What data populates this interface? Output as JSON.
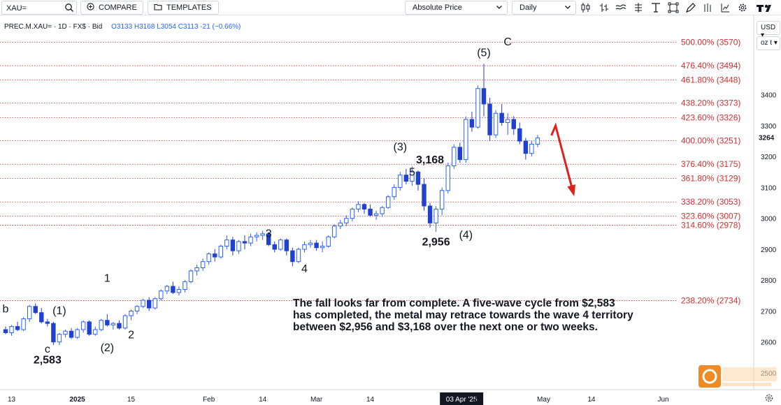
{
  "toolbar": {
    "symbol_value": "XAU=",
    "compare_label": "COMPARE",
    "templates_label": "TEMPLATES",
    "price_type": "Absolute Price",
    "interval": "Daily",
    "icons": [
      "search-icon",
      "compare-plus-icon",
      "folder-icon",
      "candles-icon",
      "bars-icon",
      "lines-icon",
      "crosshair-icon",
      "text-icon",
      "fullscreen-icon",
      "drawing-icon",
      "layers-icon",
      "settings-icon"
    ]
  },
  "legend": {
    "name": "PREC.M.XAU=",
    "interval": "1D",
    "source": "FX$",
    "side": "Bid",
    "open": "O3133",
    "high": "H3168",
    "low": "L3054",
    "close": "C3113",
    "change": "-21 (−0.66%)"
  },
  "y_axis": {
    "currency": "USD",
    "unit": "oz t"
  },
  "annotation_text": "The fall looks far from complete.  A five-wave cycle from $2,583 has completed, the metal may retrace towards the wave 4 territory between $2,956 and $3,168 over the next one or two weeks.",
  "colors": {
    "up": "#2962ff",
    "down": "#2040d0",
    "fib": "#d32f2f",
    "arrow": "#e0201b"
  },
  "chart_data": {
    "type": "candlestick",
    "ylim": [
      2500,
      3650
    ],
    "y_ticks": [
      2500,
      2600,
      2700,
      2800,
      2900,
      3000,
      3100,
      3200,
      3300,
      3400
    ],
    "y_tick_labels": [
      "2500",
      "2600",
      "2700",
      "2800",
      "2900",
      "3000",
      "3100",
      "3200",
      "3300",
      "3400"
    ],
    "last_price_label": "3264",
    "x_tick_labels": [
      {
        "label": "13",
        "i": 1
      },
      {
        "label": "2025",
        "i": 12
      },
      {
        "label": "15",
        "i": 21
      },
      {
        "label": "Feb",
        "i": 34
      },
      {
        "label": "14",
        "i": 43
      },
      {
        "label": "Mar",
        "i": 52
      },
      {
        "label": "14",
        "i": 61
      },
      {
        "label": "03 Apr '25",
        "i": 73
      },
      {
        "label": "14",
        "i": 79
      },
      {
        "label": "May",
        "i": 90
      },
      {
        "label": "14",
        "i": 98
      },
      {
        "label": "Jun",
        "i": 110
      }
    ],
    "fib_levels": [
      {
        "label": "500.00% (3570)",
        "value": 3570
      },
      {
        "label": "476.40% (3494)",
        "value": 3494
      },
      {
        "label": "461.80% (3448)",
        "value": 3448
      },
      {
        "label": "438.20% (3373)",
        "value": 3373
      },
      {
        "label": "423.60% (3326)",
        "value": 3326
      },
      {
        "label": "400.00% (3251)",
        "value": 3251
      },
      {
        "label": "376.40% (3175)",
        "value": 3175
      },
      {
        "label": "361.80% (3129)",
        "value": 3129
      },
      {
        "label": "338.20% (3053)",
        "value": 3053
      },
      {
        "label": "323.60% (3007)",
        "value": 3007
      },
      {
        "label": "314.60% (2978)",
        "value": 2978
      },
      {
        "label": "238.20% (2734)",
        "value": 2734
      }
    ],
    "wave_labels": [
      {
        "text": "b",
        "i": 0,
        "price": 2695
      },
      {
        "text": "(1)",
        "i": 9,
        "price": 2690
      },
      {
        "text": "c",
        "i": 7,
        "price": 2565
      },
      {
        "text": "2,583",
        "i": 7,
        "price": 2530
      },
      {
        "text": "1",
        "i": 17,
        "price": 2795
      },
      {
        "text": "(2)",
        "i": 17,
        "price": 2570
      },
      {
        "text": "2",
        "i": 21,
        "price": 2612
      },
      {
        "text": "3",
        "i": 44,
        "price": 2940
      },
      {
        "text": "4",
        "i": 50,
        "price": 2825
      },
      {
        "text": "(3)",
        "i": 66,
        "price": 3220
      },
      {
        "text": "5",
        "i": 68,
        "price": 3138
      },
      {
        "text": "3,168",
        "i": 71,
        "price": 3178
      },
      {
        "text": "(4)",
        "i": 77,
        "price": 2935
      },
      {
        "text": "2,956",
        "i": 72,
        "price": 2912
      },
      {
        "text": "(5)",
        "i": 80,
        "price": 3525
      },
      {
        "text": "C",
        "i": 84,
        "price": 3560
      }
    ],
    "candles": [
      [
        2640,
        2650,
        2625,
        2630
      ],
      [
        2630,
        2655,
        2620,
        2650
      ],
      [
        2650,
        2665,
        2635,
        2640
      ],
      [
        2640,
        2680,
        2635,
        2675
      ],
      [
        2675,
        2720,
        2665,
        2715
      ],
      [
        2715,
        2725,
        2690,
        2695
      ],
      [
        2695,
        2710,
        2660,
        2665
      ],
      [
        2665,
        2675,
        2650,
        2660
      ],
      [
        2660,
        2665,
        2590,
        2600
      ],
      [
        2600,
        2630,
        2590,
        2625
      ],
      [
        2625,
        2640,
        2615,
        2635
      ],
      [
        2635,
        2645,
        2610,
        2615
      ],
      [
        2615,
        2645,
        2610,
        2640
      ],
      [
        2640,
        2670,
        2630,
        2665
      ],
      [
        2665,
        2670,
        2620,
        2625
      ],
      [
        2625,
        2650,
        2620,
        2640
      ],
      [
        2640,
        2675,
        2635,
        2670
      ],
      [
        2670,
        2690,
        2650,
        2655
      ],
      [
        2655,
        2665,
        2640,
        2660
      ],
      [
        2660,
        2670,
        2640,
        2645
      ],
      [
        2645,
        2690,
        2640,
        2685
      ],
      [
        2685,
        2705,
        2670,
        2700
      ],
      [
        2700,
        2720,
        2690,
        2715
      ],
      [
        2715,
        2740,
        2710,
        2735
      ],
      [
        2735,
        2745,
        2700,
        2710
      ],
      [
        2710,
        2745,
        2705,
        2740
      ],
      [
        2740,
        2770,
        2735,
        2765
      ],
      [
        2765,
        2785,
        2755,
        2780
      ],
      [
        2780,
        2795,
        2755,
        2760
      ],
      [
        2760,
        2780,
        2750,
        2770
      ],
      [
        2770,
        2800,
        2760,
        2795
      ],
      [
        2795,
        2835,
        2790,
        2830
      ],
      [
        2830,
        2850,
        2815,
        2840
      ],
      [
        2840,
        2870,
        2830,
        2860
      ],
      [
        2860,
        2890,
        2850,
        2885
      ],
      [
        2885,
        2900,
        2860,
        2875
      ],
      [
        2875,
        2915,
        2870,
        2910
      ],
      [
        2910,
        2945,
        2900,
        2930
      ],
      [
        2930,
        2940,
        2880,
        2895
      ],
      [
        2895,
        2930,
        2885,
        2925
      ],
      [
        2925,
        2945,
        2900,
        2920
      ],
      [
        2920,
        2950,
        2910,
        2940
      ],
      [
        2940,
        2955,
        2925,
        2945
      ],
      [
        2945,
        2960,
        2930,
        2950
      ],
      [
        2950,
        2955,
        2910,
        2915
      ],
      [
        2915,
        2925,
        2890,
        2900
      ],
      [
        2900,
        2935,
        2895,
        2930
      ],
      [
        2930,
        2935,
        2880,
        2895
      ],
      [
        2895,
        2905,
        2845,
        2860
      ],
      [
        2860,
        2905,
        2855,
        2900
      ],
      [
        2900,
        2925,
        2890,
        2915
      ],
      [
        2915,
        2930,
        2905,
        2920
      ],
      [
        2920,
        2930,
        2895,
        2905
      ],
      [
        2905,
        2925,
        2890,
        2910
      ],
      [
        2910,
        2945,
        2905,
        2940
      ],
      [
        2940,
        2980,
        2935,
        2975
      ],
      [
        2975,
        2995,
        2965,
        2985
      ],
      [
        2985,
        3010,
        2975,
        3000
      ],
      [
        3000,
        3035,
        2990,
        3030
      ],
      [
        3030,
        3055,
        3020,
        3045
      ],
      [
        3045,
        3050,
        3015,
        3030
      ],
      [
        3030,
        3045,
        3005,
        3010
      ],
      [
        3010,
        3025,
        2995,
        3015
      ],
      [
        3015,
        3040,
        3005,
        3035
      ],
      [
        3035,
        3075,
        3030,
        3070
      ],
      [
        3070,
        3110,
        3060,
        3100
      ],
      [
        3100,
        3150,
        3090,
        3140
      ],
      [
        3140,
        3160,
        3110,
        3120
      ],
      [
        3120,
        3168,
        3105,
        3150
      ],
      [
        3150,
        3155,
        3090,
        3110
      ],
      [
        3110,
        3130,
        3025,
        3040
      ],
      [
        3040,
        3050,
        2970,
        2985
      ],
      [
        2985,
        3040,
        2956,
        3030
      ],
      [
        3030,
        3100,
        3010,
        3090
      ],
      [
        3090,
        3180,
        3080,
        3170
      ],
      [
        3170,
        3240,
        3160,
        3230
      ],
      [
        3230,
        3245,
        3180,
        3190
      ],
      [
        3190,
        3330,
        3180,
        3320
      ],
      [
        3320,
        3345,
        3280,
        3295
      ],
      [
        3295,
        3430,
        3290,
        3420
      ],
      [
        3420,
        3500,
        3330,
        3370
      ],
      [
        3370,
        3390,
        3250,
        3270
      ],
      [
        3270,
        3350,
        3260,
        3340
      ],
      [
        3340,
        3370,
        3300,
        3310
      ],
      [
        3310,
        3340,
        3270,
        3320
      ],
      [
        3320,
        3330,
        3270,
        3290
      ],
      [
        3290,
        3310,
        3240,
        3250
      ],
      [
        3250,
        3260,
        3190,
        3210
      ],
      [
        3210,
        3250,
        3200,
        3240
      ],
      [
        3240,
        3270,
        3230,
        3260
      ]
    ],
    "projection_arrow": {
      "from_i": 92,
      "from_price": 3300,
      "to_i": 95,
      "to_price": 3080
    }
  }
}
